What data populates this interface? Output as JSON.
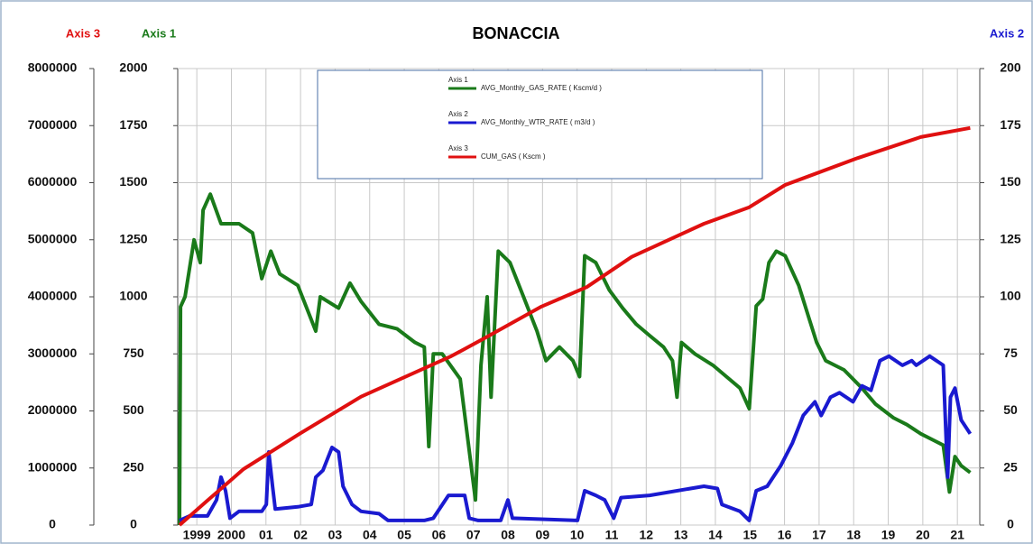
{
  "chart_data": {
    "type": "line",
    "title": "BONACCIA",
    "y_label": "Axis 1",
    "y2_label": "Axis 2",
    "y3_label": "Axis 3",
    "y_color": "#1a7a1a",
    "y2_color": "#1a1ad0",
    "y3_color": "#e01010",
    "xlim": [
      1999,
      2022.2
    ],
    "xticks": [
      {
        "value": 1999.5,
        "label": "1999"
      },
      {
        "value": 2000.5,
        "label": "2000"
      },
      {
        "value": 2001.5,
        "label": "01"
      },
      {
        "value": 2002.5,
        "label": "02"
      },
      {
        "value": 2003.5,
        "label": "03"
      },
      {
        "value": 2004.5,
        "label": "04"
      },
      {
        "value": 2005.5,
        "label": "05"
      },
      {
        "value": 2006.5,
        "label": "06"
      },
      {
        "value": 2007.5,
        "label": "07"
      },
      {
        "value": 2008.5,
        "label": "08"
      },
      {
        "value": 2009.5,
        "label": "09"
      },
      {
        "value": 2010.5,
        "label": "10"
      },
      {
        "value": 2011.5,
        "label": "11"
      },
      {
        "value": 2012.5,
        "label": "12"
      },
      {
        "value": 2013.5,
        "label": "13"
      },
      {
        "value": 2014.5,
        "label": "14"
      },
      {
        "value": 2015.5,
        "label": "15"
      },
      {
        "value": 2016.5,
        "label": "16"
      },
      {
        "value": 2017.5,
        "label": "17"
      },
      {
        "value": 2018.5,
        "label": "18"
      },
      {
        "value": 2019.5,
        "label": "19"
      },
      {
        "value": 2020.5,
        "label": "20"
      },
      {
        "value": 2021.5,
        "label": "21"
      }
    ],
    "ylim": [
      0,
      2000
    ],
    "yticks": [
      0,
      250,
      500,
      750,
      1000,
      1250,
      1500,
      1750,
      2000
    ],
    "y2lim": [
      0,
      200
    ],
    "y2ticks": [
      0,
      25,
      50,
      75,
      100,
      125,
      150,
      175,
      200
    ],
    "y3lim": [
      0,
      8000000
    ],
    "y3ticks": [
      0,
      1000000,
      2000000,
      3000000,
      4000000,
      5000000,
      6000000,
      7000000,
      8000000
    ],
    "grid": true,
    "series": [
      {
        "name": "AVG_Monthly_GAS_RATE ( Kscm/d )",
        "color": "#1a7a1a",
        "axis": "y",
        "x": [
          1999.0,
          1999.03,
          1999.16,
          1999.42,
          1999.6,
          1999.68,
          1999.89,
          2000.2,
          2000.72,
          2001.11,
          2001.38,
          2001.64,
          2001.9,
          2002.42,
          2002.94,
          2003.07,
          2003.6,
          2003.93,
          2004.25,
          2004.77,
          2005.29,
          2005.81,
          2006.08,
          2006.21,
          2006.34,
          2006.6,
          2007.12,
          2007.56,
          2007.72,
          2007.9,
          2008.01,
          2008.22,
          2008.56,
          2008.95,
          2009.34,
          2009.6,
          2009.99,
          2010.38,
          2010.57,
          2010.72,
          2011.04,
          2011.43,
          2011.82,
          2012.21,
          2012.6,
          2013.0,
          2013.26,
          2013.39,
          2013.52,
          2013.91,
          2014.43,
          2014.82,
          2015.21,
          2015.48,
          2015.68,
          2015.87,
          2016.05,
          2016.26,
          2016.52,
          2016.91,
          2017.22,
          2017.43,
          2017.69,
          2018.22,
          2018.74,
          2019.13,
          2019.65,
          2020.04,
          2020.44,
          2020.83,
          2021.09,
          2021.27,
          2021.43,
          2021.61,
          2021.87
        ],
        "values": [
          0,
          956,
          1000,
          1250,
          1150,
          1380,
          1450,
          1320,
          1320,
          1280,
          1080,
          1200,
          1100,
          1050,
          850,
          1000,
          950,
          1060,
          980,
          880,
          860,
          800,
          780,
          344,
          750,
          750,
          640,
          110,
          700,
          1000,
          560,
          1200,
          1150,
          1000,
          850,
          720,
          780,
          720,
          650,
          1180,
          1150,
          1030,
          950,
          880,
          830,
          780,
          720,
          560,
          800,
          750,
          700,
          650,
          600,
          510,
          960,
          990,
          1150,
          1200,
          1180,
          1050,
          900,
          800,
          720,
          680,
          600,
          530,
          470,
          440,
          400,
          370,
          350,
          145,
          300,
          260,
          230
        ]
      },
      {
        "name": "AVG_Monthly_WTR_RATE ( m3/d )",
        "color": "#1a1ad0",
        "axis": "y2",
        "x": [
          1999.0,
          1999.29,
          1999.81,
          2000.07,
          2000.2,
          2000.33,
          2000.46,
          2000.72,
          2001.38,
          2001.51,
          2001.58,
          2001.69,
          2001.77,
          2002.42,
          2002.81,
          2002.94,
          2003.15,
          2003.41,
          2003.6,
          2003.73,
          2003.99,
          2004.25,
          2004.77,
          2005.03,
          2006.08,
          2006.34,
          2006.78,
          2007.25,
          2007.38,
          2007.64,
          2008.29,
          2008.5,
          2008.63,
          2010.51,
          2010.72,
          2011.04,
          2011.3,
          2011.56,
          2011.77,
          2012.6,
          2014.17,
          2014.56,
          2014.69,
          2015.21,
          2015.48,
          2015.68,
          2016.0,
          2016.39,
          2016.73,
          2017.04,
          2017.38,
          2017.56,
          2017.83,
          2018.09,
          2018.48,
          2018.74,
          2019.0,
          2019.26,
          2019.52,
          2019.91,
          2020.18,
          2020.31,
          2020.7,
          2021.09,
          2021.22,
          2021.3,
          2021.43,
          2021.61,
          2021.87
        ],
        "values": [
          2,
          4,
          4,
          11,
          21,
          15,
          3,
          6,
          6,
          9,
          32,
          17,
          7,
          8,
          9,
          21,
          24,
          34,
          32,
          17,
          9,
          6,
          5,
          2,
          2,
          3,
          13,
          13,
          3,
          2,
          2,
          11,
          3,
          2,
          15,
          13,
          11,
          3,
          12,
          13,
          17,
          16,
          9,
          6,
          2,
          15,
          17,
          26,
          36,
          48,
          54,
          48,
          56,
          58,
          54,
          61,
          59,
          72,
          74,
          70,
          72,
          70,
          74,
          70,
          21,
          56,
          60,
          46,
          40
        ]
      },
      {
        "name": "CUM_GAS ( Kscm )",
        "color": "#e01010",
        "axis": "y3",
        "x": [
          1999.0,
          1999.81,
          2000.85,
          2002.5,
          2004.25,
          2006.86,
          2007.9,
          2009.47,
          2010.78,
          2012.08,
          2014.17,
          2015.48,
          2016.52,
          2018.61,
          2020.44,
          2021.87
        ],
        "values": [
          0,
          430000,
          980000,
          1610000,
          2250000,
          2960000,
          3300000,
          3830000,
          4170000,
          4700000,
          5280000,
          5570000,
          5960000,
          6430000,
          6800000,
          6960000
        ]
      }
    ]
  }
}
